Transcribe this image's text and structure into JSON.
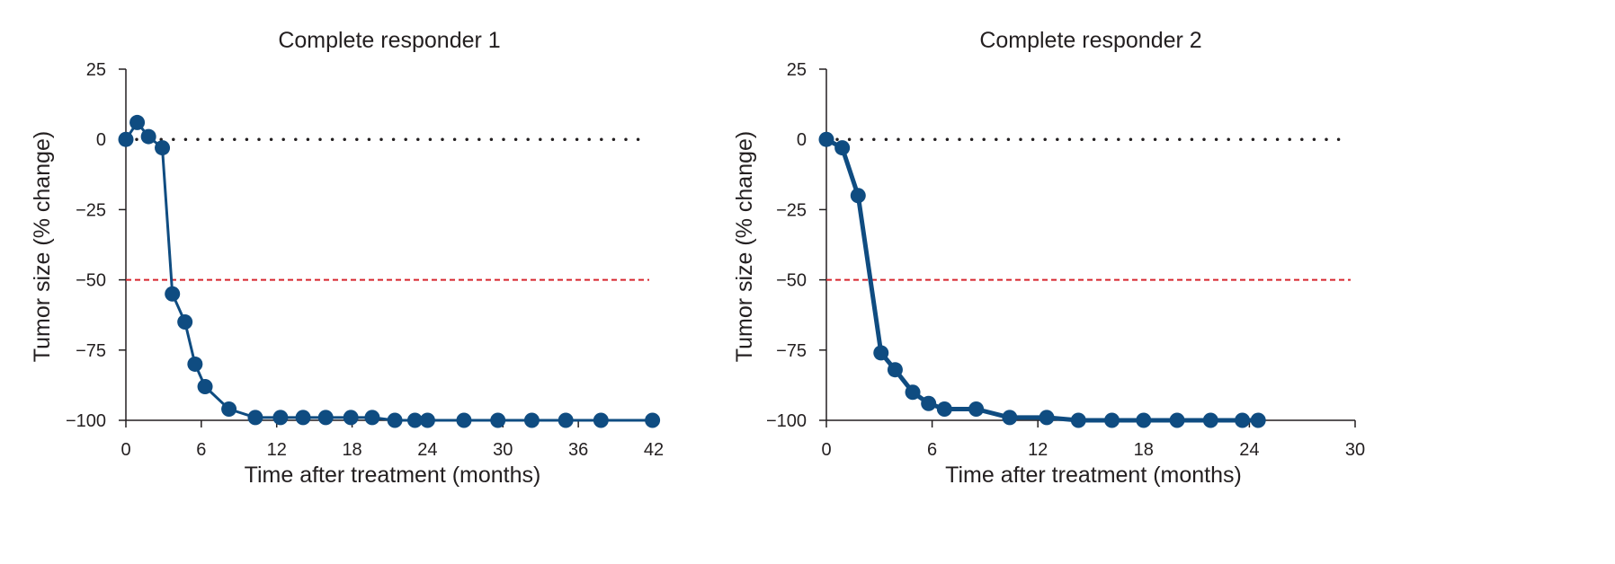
{
  "chart_data": [
    {
      "type": "line",
      "title": "Complete responder 1",
      "xlabel": "Time after treatment (months)",
      "ylabel": "Tumor size (% change)",
      "xlim": [
        0,
        42
      ],
      "ylim": [
        -100,
        25
      ],
      "xticks": [
        0,
        6,
        12,
        18,
        24,
        30,
        36,
        42
      ],
      "yticks": [
        25,
        0,
        -25,
        -50,
        -75,
        -100
      ],
      "xtick_labels": [
        "0",
        "6",
        "12",
        "18",
        "24",
        "30",
        "36",
        "42"
      ],
      "ytick_labels": [
        "25",
        "0",
        "−25",
        "−50",
        "−75",
        "−100"
      ],
      "reference_lines": [
        {
          "y": 0,
          "style": "dotted",
          "color": "#231f20"
        },
        {
          "y": -50,
          "style": "dashed",
          "color": "#d7262e"
        }
      ],
      "series": [
        {
          "color": "#0f4c81",
          "x": [
            0,
            0.9,
            1.8,
            2.9,
            3.7,
            4.7,
            5.5,
            6.3,
            8.2,
            10.3,
            12.3,
            14.1,
            15.9,
            17.9,
            19.6,
            21.4,
            23.0,
            24.0,
            26.9,
            29.6,
            32.3,
            35.0,
            37.8,
            41.9
          ],
          "y": [
            0,
            6,
            1,
            -3,
            -55,
            -65,
            -80,
            -88,
            -96,
            -99,
            -99,
            -99,
            -99,
            -99,
            -99,
            -100,
            -100,
            -100,
            -100,
            -100,
            -100,
            -100,
            -100,
            -100
          ]
        }
      ],
      "grid": false
    },
    {
      "type": "line",
      "title": "Complete responder 2",
      "xlabel": "Time after treatment (months)",
      "ylabel": "Tumor size (% change)",
      "xlim": [
        0,
        30
      ],
      "ylim": [
        -100,
        25
      ],
      "xticks": [
        0,
        6,
        12,
        18,
        24,
        30
      ],
      "yticks": [
        25,
        0,
        -25,
        -50,
        -75,
        -100
      ],
      "xtick_labels": [
        "0",
        "6",
        "12",
        "18",
        "24",
        "30"
      ],
      "ytick_labels": [
        "25",
        "0",
        "−25",
        "−50",
        "−75",
        "−100"
      ],
      "reference_lines": [
        {
          "y": 0,
          "style": "dotted",
          "color": "#231f20"
        },
        {
          "y": -50,
          "style": "dashed",
          "color": "#d7262e"
        }
      ],
      "series": [
        {
          "color": "#0f4c81",
          "x": [
            0,
            0.9,
            1.8,
            3.1,
            3.9,
            4.9,
            5.8,
            6.7,
            8.5,
            10.4,
            12.5,
            14.3,
            16.2,
            18.0,
            19.9,
            21.8,
            23.6,
            24.5
          ],
          "y": [
            0,
            -3,
            -20,
            -76,
            -82,
            -90,
            -94,
            -96,
            -96,
            -99,
            -99,
            -100,
            -100,
            -100,
            -100,
            -100,
            -100,
            -100
          ]
        }
      ],
      "grid": false
    }
  ]
}
